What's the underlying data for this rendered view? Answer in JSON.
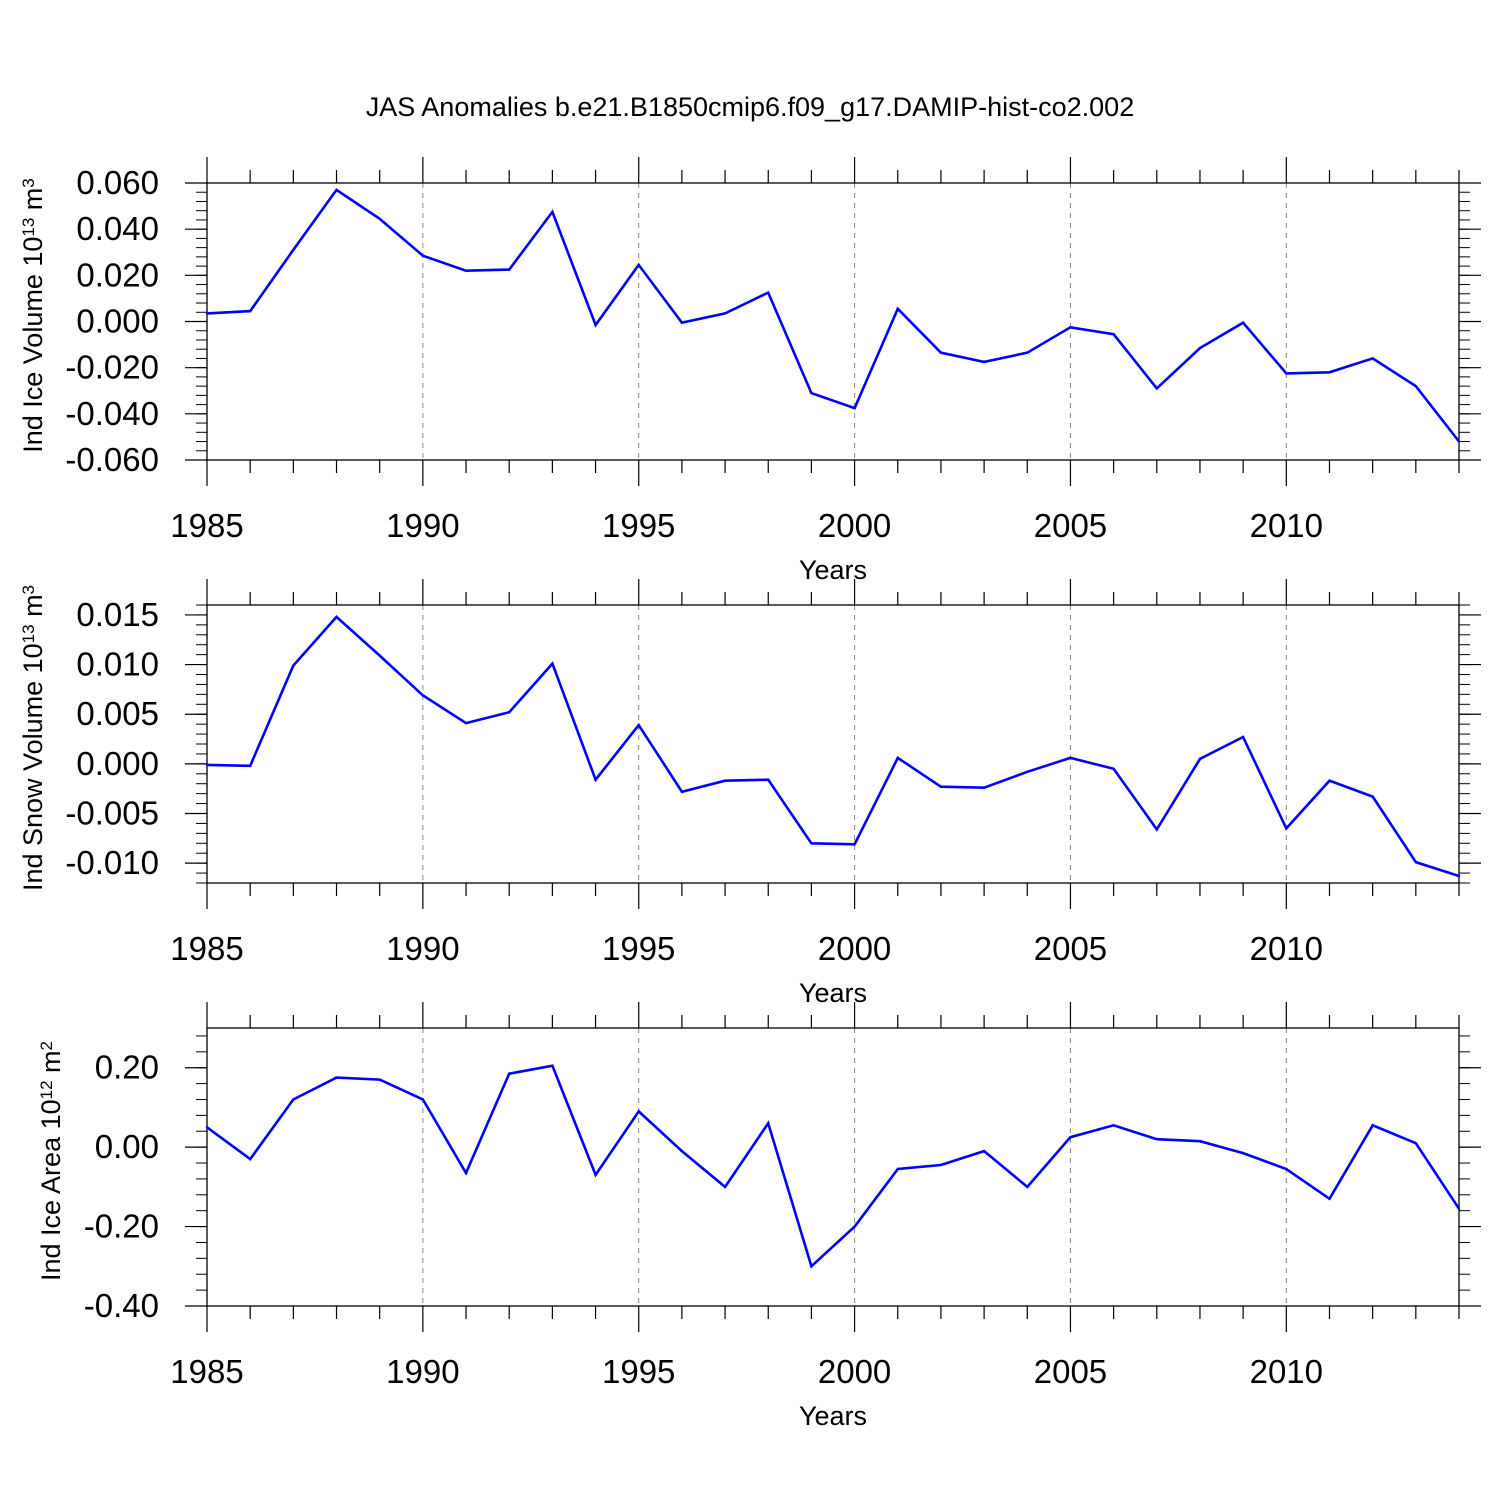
{
  "title": "JAS Anomalies b.e21.B1850cmip6.f09_g17.DAMIP-hist-co2.002",
  "colors": {
    "series": "#0000ff",
    "axis": "#000000",
    "grid": "#888888"
  },
  "chart_data": [
    {
      "type": "line",
      "ylabel": "Ind Ice Volume",
      "ylabel_unit": "10",
      "ylabel_exp": "13",
      "ylabel_unit2": "m",
      "ylabel_exp2": "3",
      "xlabel": "Years",
      "xlim": [
        1985,
        2014
      ],
      "ylim": [
        -0.06,
        0.06
      ],
      "yticks": [
        -0.06,
        -0.04,
        -0.02,
        0.0,
        0.02,
        0.04,
        0.06
      ],
      "ytick_labels": [
        "-0.060",
        "-0.040",
        "-0.020",
        "0.000",
        "0.020",
        "0.040",
        "0.060"
      ],
      "xticks": [
        1985,
        1990,
        1995,
        2000,
        2005,
        2010
      ],
      "xtick_labels": [
        "1985",
        "1990",
        "1995",
        "2000",
        "2005",
        "2010"
      ],
      "grid": "vertical dashed at 1990, 1995, 2000, 2005, 2010",
      "x": [
        1985,
        1986,
        1987,
        1988,
        1989,
        1990,
        1991,
        1992,
        1993,
        1994,
        1995,
        1996,
        1997,
        1998,
        1999,
        2000,
        2001,
        2002,
        2003,
        2004,
        2005,
        2006,
        2007,
        2008,
        2009,
        2010,
        2011,
        2012,
        2013,
        2014
      ],
      "values": [
        0.0035,
        0.0045,
        0.031,
        0.057,
        0.0445,
        0.0285,
        0.022,
        0.0225,
        0.0475,
        -0.0015,
        0.0245,
        -0.0005,
        0.0035,
        0.0125,
        -0.031,
        -0.0375,
        0.0055,
        -0.0135,
        -0.0175,
        -0.0135,
        -0.0025,
        -0.0055,
        -0.029,
        -0.0115,
        -0.0005,
        -0.0225,
        -0.022,
        -0.016,
        -0.028,
        -0.052
      ]
    },
    {
      "type": "line",
      "ylabel": "Ind Snow Volume",
      "ylabel_unit": "10",
      "ylabel_exp": "13",
      "ylabel_unit2": "m",
      "ylabel_exp2": "3",
      "xlabel": "Years",
      "xlim": [
        1985,
        2014
      ],
      "ylim": [
        -0.012,
        0.016
      ],
      "yticks": [
        -0.01,
        -0.005,
        0.0,
        0.005,
        0.01,
        0.015
      ],
      "ytick_labels": [
        "-0.010",
        "-0.005",
        "0.000",
        "0.005",
        "0.010",
        "0.015"
      ],
      "xticks": [
        1985,
        1990,
        1995,
        2000,
        2005,
        2010
      ],
      "xtick_labels": [
        "1985",
        "1990",
        "1995",
        "2000",
        "2005",
        "2010"
      ],
      "grid": "vertical dashed at 1990, 1995, 2000, 2005, 2010",
      "x": [
        1985,
        1986,
        1987,
        1988,
        1989,
        1990,
        1991,
        1992,
        1993,
        1994,
        1995,
        1996,
        1997,
        1998,
        1999,
        2000,
        2001,
        2002,
        2003,
        2004,
        2005,
        2006,
        2007,
        2008,
        2009,
        2010,
        2011,
        2012,
        2013,
        2014
      ],
      "values": [
        -0.0001,
        -0.0002,
        0.0099,
        0.0148,
        0.0109,
        0.0069,
        0.0041,
        0.0052,
        0.0101,
        -0.0016,
        0.0039,
        -0.0028,
        -0.0017,
        -0.0016,
        -0.008,
        -0.0081,
        0.0006,
        -0.0023,
        -0.0024,
        -0.0008,
        0.0006,
        -0.0005,
        -0.0066,
        0.0005,
        0.0027,
        -0.0065,
        -0.0017,
        -0.0033,
        -0.0099,
        -0.0113
      ]
    },
    {
      "type": "line",
      "ylabel": "Ind Ice Area",
      "ylabel_unit": "10",
      "ylabel_exp": "12",
      "ylabel_unit2": "m",
      "ylabel_exp2": "2",
      "xlabel": "Years",
      "xlim": [
        1985,
        2014
      ],
      "ylim": [
        -0.4,
        0.3
      ],
      "yticks": [
        -0.4,
        -0.2,
        0.0,
        0.2
      ],
      "ytick_labels": [
        "-0.40",
        "-0.20",
        "0.00",
        "0.20"
      ],
      "xticks": [
        1985,
        1990,
        1995,
        2000,
        2005,
        2010
      ],
      "xtick_labels": [
        "1985",
        "1990",
        "1995",
        "2000",
        "2005",
        "2010"
      ],
      "grid": "vertical dashed at 1990, 1995, 2000, 2005, 2010",
      "x": [
        1985,
        1986,
        1987,
        1988,
        1989,
        1990,
        1991,
        1992,
        1993,
        1994,
        1995,
        1996,
        1997,
        1998,
        1999,
        2000,
        2001,
        2002,
        2003,
        2004,
        2005,
        2006,
        2007,
        2008,
        2009,
        2010,
        2011,
        2012,
        2013,
        2014
      ],
      "values": [
        0.05,
        -0.03,
        0.12,
        0.175,
        0.17,
        0.12,
        -0.065,
        0.185,
        0.205,
        -0.07,
        0.09,
        -0.01,
        -0.1,
        0.06,
        -0.3,
        -0.2,
        -0.055,
        -0.045,
        -0.01,
        -0.1,
        0.025,
        0.055,
        0.02,
        0.015,
        -0.015,
        -0.055,
        -0.13,
        0.055,
        0.01,
        -0.155
      ]
    }
  ]
}
